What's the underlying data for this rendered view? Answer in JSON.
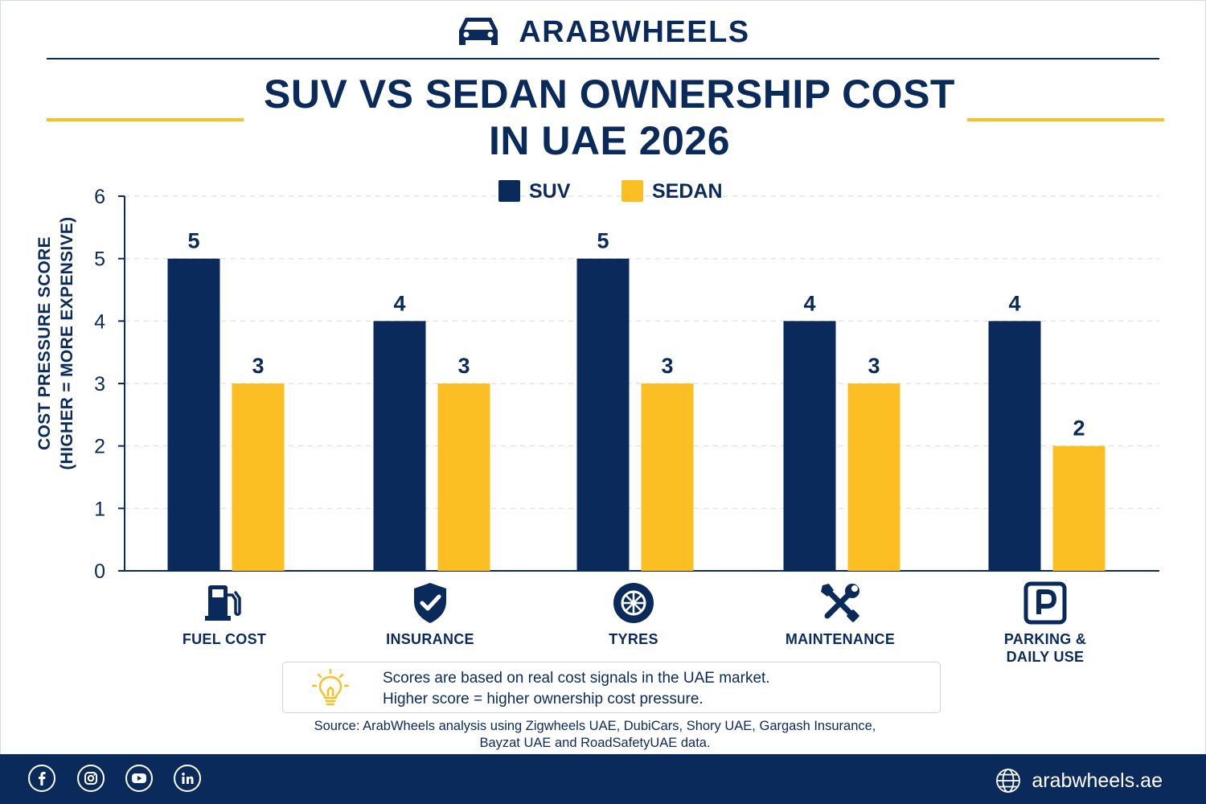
{
  "brand": {
    "name": "ARABWHEELS",
    "icon": "car-icon"
  },
  "title_lines": [
    "SUV VS SEDAN OWNERSHIP COST",
    "IN UAE 2026"
  ],
  "colors": {
    "navy": "#0b2a5c",
    "gold": "#fbbf24",
    "grid": "#d9dde5"
  },
  "chart_data": {
    "type": "bar",
    "title": "SUV VS SEDAN OWNERSHIP COST IN UAE 2026",
    "ylabel_lines": [
      "COST PRESSURE SCORE",
      "(HIGHER = MORE EXPENSIVE)"
    ],
    "xlabel": "",
    "ylim": [
      0,
      6
    ],
    "yticks": [
      0,
      1,
      2,
      3,
      4,
      5,
      6
    ],
    "grid": true,
    "legend_position": "top-center",
    "categories": [
      "FUEL COST",
      "INSURANCE",
      "TYRES",
      "MAINTENANCE",
      "PARKING & DAILY USE"
    ],
    "category_lines": [
      [
        "FUEL COST"
      ],
      [
        "INSURANCE"
      ],
      [
        "TYRES"
      ],
      [
        "MAINTENANCE"
      ],
      [
        "PARKING &",
        "DAILY USE"
      ]
    ],
    "category_icons": [
      "fuel-pump-icon",
      "shield-check-icon",
      "tyre-icon",
      "tools-icon",
      "parking-icon"
    ],
    "series": [
      {
        "name": "SUV",
        "color": "#0b2a5c",
        "values": [
          5,
          4,
          5,
          4,
          4
        ]
      },
      {
        "name": "SEDAN",
        "color": "#fbbf24",
        "values": [
          3,
          3,
          3,
          3,
          2
        ]
      }
    ]
  },
  "note": {
    "icon": "lightbulb-icon",
    "line1": "Scores are based on real cost signals in the UAE market.",
    "line2": "Higher score = higher ownership cost pressure."
  },
  "source": {
    "line1": "Source: ArabWheels analysis using Zigwheels UAE, DubiCars, Shory UAE, Gargash Insurance,",
    "line2": "Bayzat UAE and RoadSafetyUAE data."
  },
  "footer": {
    "socials": [
      "facebook-icon",
      "instagram-icon",
      "youtube-icon",
      "linkedin-icon"
    ],
    "website": "arabwheels.ae",
    "website_icon": "globe-icon"
  }
}
